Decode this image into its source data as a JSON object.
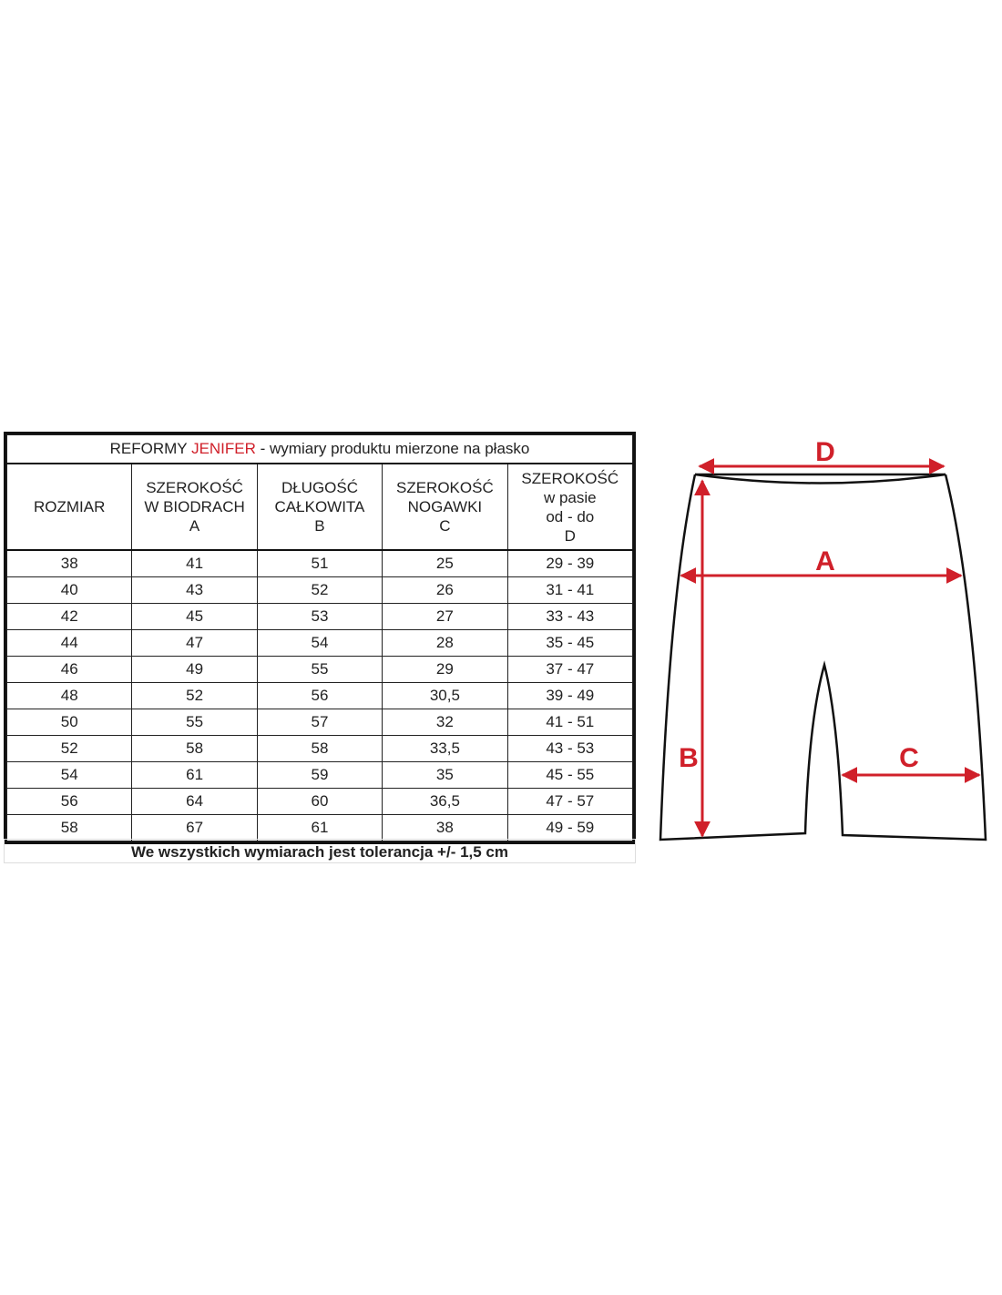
{
  "table": {
    "title_prefix": "REFORMY",
    "title_brand": "JENIFER",
    "title_suffix": "- wymiary produktu mierzone na płasko",
    "headers": [
      [
        "ROZMIAR"
      ],
      [
        "SZEROKOŚĆ",
        "W BIODRACH",
        "A"
      ],
      [
        "DŁUGOŚĆ",
        "CAŁKOWITA",
        "B"
      ],
      [
        "SZEROKOŚĆ",
        "NOGAWKI",
        "C"
      ],
      [
        "SZEROKOŚĆ",
        "w pasie",
        "od - do",
        "D"
      ]
    ],
    "rows": [
      [
        "38",
        "41",
        "51",
        "25",
        "29 - 39"
      ],
      [
        "40",
        "43",
        "52",
        "26",
        "31 - 41"
      ],
      [
        "42",
        "45",
        "53",
        "27",
        "33 - 43"
      ],
      [
        "44",
        "47",
        "54",
        "28",
        "35 - 45"
      ],
      [
        "46",
        "49",
        "55",
        "29",
        "37 - 47"
      ],
      [
        "48",
        "52",
        "56",
        "30,5",
        "39 - 49"
      ],
      [
        "50",
        "55",
        "57",
        "32",
        "41 - 51"
      ],
      [
        "52",
        "58",
        "58",
        "33,5",
        "43 - 53"
      ],
      [
        "54",
        "61",
        "59",
        "35",
        "45 - 55"
      ],
      [
        "56",
        "64",
        "60",
        "36,5",
        "47 - 57"
      ],
      [
        "58",
        "67",
        "61",
        "38",
        "49 - 59"
      ]
    ],
    "footer": "We wszystkich wymiarach jest tolerancja +/- 1,5 cm"
  },
  "diagram": {
    "labels": {
      "d": "D",
      "a": "A",
      "b": "B",
      "c": "C"
    }
  },
  "colors": {
    "brand": "#d0202a",
    "arrow": "#d0202a",
    "outline": "#111111"
  }
}
